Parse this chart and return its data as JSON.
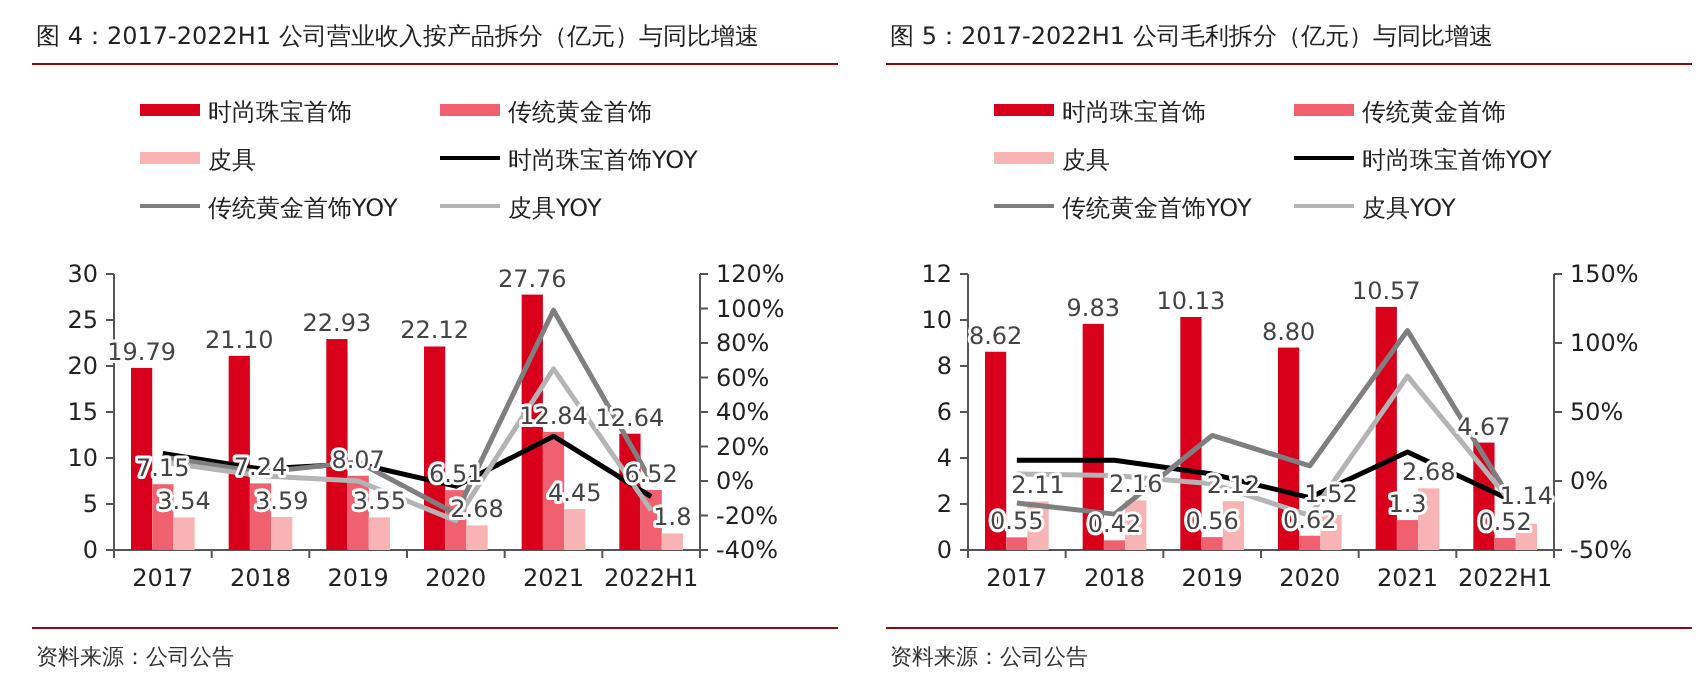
{
  "chart_data": [
    {
      "type": "bar",
      "title": "图 4：2017-2022H1 公司营业收入按产品拆分（亿元）与同比增速",
      "categories": [
        "2017",
        "2018",
        "2019",
        "2020",
        "2021",
        "2022H1"
      ],
      "ylim": [
        0,
        30
      ],
      "yticks": [
        0,
        5,
        10,
        15,
        20,
        25,
        30
      ],
      "y2lim": [
        -40,
        120
      ],
      "y2ticks": [
        {
          "value": -40,
          "label": "-40%"
        },
        {
          "value": -20,
          "label": "-20%"
        },
        {
          "value": 0,
          "label": "0%"
        },
        {
          "value": 20,
          "label": "20%"
        },
        {
          "value": 40,
          "label": "40%"
        },
        {
          "value": 60,
          "label": "60%"
        },
        {
          "value": 80,
          "label": "80%"
        },
        {
          "value": 100,
          "label": "100%"
        },
        {
          "value": 120,
          "label": "120%"
        }
      ],
      "legend": "top",
      "grid": false,
      "annotations": [
        "资料来源：公司公告"
      ],
      "series": [
        {
          "name": "时尚珠宝首饰",
          "color": "#d9001b",
          "values": [
            19.79,
            21.1,
            22.93,
            22.12,
            27.76,
            12.64
          ],
          "value_labels": [
            "19.79",
            "21.10",
            "22.93",
            "22.12",
            "27.76",
            "12.64"
          ]
        },
        {
          "name": "传统黄金首饰",
          "color": "#f0606e",
          "values": [
            7.15,
            7.24,
            8.07,
            6.51,
            12.84,
            6.52
          ],
          "value_labels": [
            "7.15",
            "7.24",
            "8.07",
            "6.51",
            "12.84",
            "6.52"
          ]
        },
        {
          "name": "皮具",
          "color": "#f8b4b4",
          "values": [
            3.54,
            3.59,
            3.55,
            2.68,
            4.45,
            1.8
          ],
          "value_labels": [
            "3.54",
            "3.59",
            "3.55",
            "2.68",
            "4.45",
            "1.8"
          ]
        },
        {
          "name": "时尚珠宝首饰YOY",
          "type": "line",
          "axis": "y2",
          "color": "#000000",
          "values": [
            16,
            7,
            10,
            -3,
            26,
            -9
          ]
        },
        {
          "name": "传统黄金首饰YOY",
          "type": "line",
          "axis": "y2",
          "color": "#7f7f7f",
          "values": [
            14,
            5,
            11,
            -19,
            99,
            0
          ]
        },
        {
          "name": "皮具YOY",
          "type": "line",
          "axis": "y2",
          "color": "#b4b4b4",
          "values": [
            11,
            3,
            0,
            -23,
            65,
            -17
          ]
        }
      ]
    },
    {
      "type": "bar",
      "title": "图 5：2017-2022H1 公司毛利拆分（亿元）与同比增速",
      "categories": [
        "2017",
        "2018",
        "2019",
        "2020",
        "2021",
        "2022H1"
      ],
      "ylim": [
        0,
        12
      ],
      "yticks": [
        0,
        2,
        4,
        6,
        8,
        10,
        12
      ],
      "y2lim": [
        -50,
        150
      ],
      "y2ticks": [
        {
          "value": -50,
          "label": "-50%"
        },
        {
          "value": 0,
          "label": "0%"
        },
        {
          "value": 50,
          "label": "50%"
        },
        {
          "value": 100,
          "label": "100%"
        },
        {
          "value": 150,
          "label": "150%"
        }
      ],
      "legend": "top",
      "grid": false,
      "annotations": [
        "资料来源：公司公告"
      ],
      "series": [
        {
          "name": "时尚珠宝首饰",
          "color": "#d9001b",
          "values": [
            8.62,
            9.83,
            10.13,
            8.8,
            10.57,
            4.67
          ],
          "value_labels": [
            "8.62",
            "9.83",
            "10.13",
            "8.80",
            "10.57",
            "4.67"
          ]
        },
        {
          "name": "传统黄金首饰",
          "color": "#f0606e",
          "values": [
            0.55,
            0.42,
            0.56,
            0.62,
            1.3,
            0.52
          ],
          "value_labels": [
            "0.55",
            "0.42",
            "0.56",
            "0.62",
            "1.3",
            "0.52"
          ]
        },
        {
          "name": "皮具",
          "color": "#f8b4b4",
          "values": [
            2.11,
            2.16,
            2.12,
            1.52,
            2.68,
            1.14
          ],
          "value_labels": [
            "2.11",
            "2.16",
            "2.12",
            "1.52",
            "2.68",
            "1.14"
          ]
        },
        {
          "name": "时尚珠宝首饰YOY",
          "type": "line",
          "axis": "y2",
          "color": "#000000",
          "values": [
            15,
            15,
            5,
            -12,
            21,
            -12
          ]
        },
        {
          "name": "传统黄金首饰YOY",
          "type": "line",
          "axis": "y2",
          "color": "#7f7f7f",
          "values": [
            -16,
            -24,
            33,
            11,
            109,
            -7
          ]
        },
        {
          "name": "皮具YOY",
          "type": "line",
          "axis": "y2",
          "color": "#b4b4b4",
          "values": [
            5,
            4,
            -2,
            -25,
            76,
            -10
          ]
        }
      ]
    }
  ]
}
